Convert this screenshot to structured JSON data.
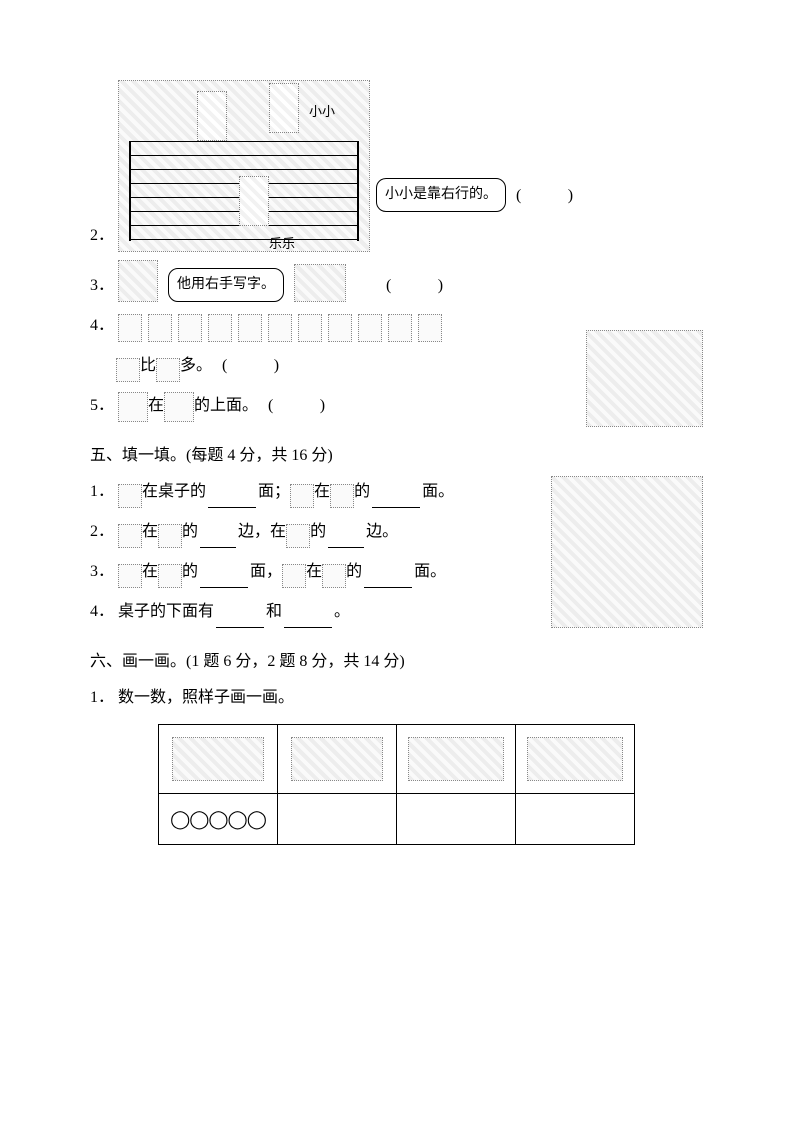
{
  "page": {
    "background_color": "#ffffff",
    "text_color": "#000000",
    "font_family": "SimSun",
    "base_fontsize": 16
  },
  "q2": {
    "number": "2．",
    "scene_labels": {
      "xiaoxiao": "小小",
      "lele": "乐乐"
    },
    "bubble_text": "小小是靠右行的。",
    "paren": "(　　)"
  },
  "q3": {
    "number": "3．",
    "bubble_text": "他用右手写字。",
    "paren": "(　　)"
  },
  "q4": {
    "number": "4．",
    "fruits_sequence": [
      "strawberry",
      "pear",
      "pear",
      "pear",
      "pear",
      "strawberry",
      "strawberry",
      "pear",
      "pear",
      "strawberry",
      "pear"
    ],
    "compare_left_icon": "strawberry",
    "compare_mid": "比",
    "compare_right_icon": "pear",
    "compare_tail": "多。",
    "paren": "(　　)"
  },
  "q5": {
    "number": "5．",
    "left_icon": "pencil-box",
    "mid": "在",
    "right_icon": "exercise-book",
    "tail": "的上面。",
    "paren": "(　　)"
  },
  "section5": {
    "title": "五、填一填。(每题 4 分，共 16 分)",
    "items": {
      "1": {
        "num": "1．",
        "parts": [
          {
            "icon": "cat"
          },
          {
            "t": "在桌子的"
          },
          {
            "blank": true
          },
          {
            "t": "面；"
          },
          {
            "icon": "ball"
          },
          {
            "t": "在"
          },
          {
            "icon": "cat"
          },
          {
            "t": "的"
          },
          {
            "blank": true
          },
          {
            "t": "面。"
          }
        ]
      },
      "2": {
        "num": "2．",
        "parts": [
          {
            "icon": "books"
          },
          {
            "t": "在"
          },
          {
            "icon": "flower"
          },
          {
            "t": "的"
          },
          {
            "blank": "sm"
          },
          {
            "t": "边，在"
          },
          {
            "icon": "pencils"
          },
          {
            "t": "的"
          },
          {
            "blank": "sm"
          },
          {
            "t": "边。"
          }
        ]
      },
      "3": {
        "num": "3．",
        "parts": [
          {
            "icon": "flower"
          },
          {
            "t": "在"
          },
          {
            "icon": "cat"
          },
          {
            "t": "的"
          },
          {
            "blank": true
          },
          {
            "t": "面，"
          },
          {
            "icon": "cat"
          },
          {
            "t": "在"
          },
          {
            "icon": "books"
          },
          {
            "t": "的"
          },
          {
            "blank": true
          },
          {
            "t": "面。"
          }
        ]
      },
      "4": {
        "num": "4．",
        "prefix": "桌子的下面有",
        "mid": "和",
        "suffix": "。"
      }
    }
  },
  "section6": {
    "title": "六、画一画。(1 题 6 分，2 题 8 分，共 14 分)",
    "q1": {
      "num": "1．",
      "text": "数一数，照样子画一画。",
      "table": {
        "top_counts": [
          5,
          6,
          8,
          10
        ],
        "top_icons": [
          "leaf",
          "radish",
          "flower",
          "ladybug"
        ],
        "example_circles": "◯◯◯◯◯",
        "answer_cells": [
          "",
          "",
          ""
        ]
      }
    }
  }
}
